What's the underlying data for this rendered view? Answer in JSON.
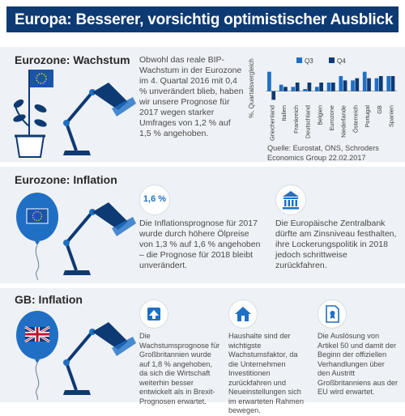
{
  "title": "Europa: Besserer, vorsichtig optimistischer Ausblick",
  "sections": {
    "growth": {
      "title": "Eurozone: Wachstum",
      "text": "Obwohl das reale BIP-Wachstum in der Eurozone im 4. Quartal 2016 mit 0,4 % unverändert blieb, haben wir unsere Prognose für 2017 wegen starker Umfrages von 1,2 % auf 1,5 % angehoben.",
      "source_line1": "Quelle: Eurostat, ONS, Schroders",
      "source_line2": "Economics Group 22.02.2017"
    },
    "inflation": {
      "title": "Eurozone: Inflation",
      "badge": "1,6 %",
      "text1": "Die Inflationsprognose für 2017 wurde durch höhere Ölpreise von 1,3 % auf 1,6 % angehoben – die Prognose für 2018 bleibt unverändert.",
      "text2": "Die Europäische Zentralbank dürfte am Zinsniveau festhalten, ihre Lockerungspolitik in 2018 jedoch schrittweise zurückfahren."
    },
    "gb": {
      "title": "GB: Inflation",
      "text1": "Die Wachstumsprognose für Großbritannien wurde auf 1,8 % angehoben, da sich die Wirtschaft weiterhin besser entwickelt als in Brexit-Prognosen erwartet.",
      "text2": "Haushalte sind der wichtigste Wachstumsfaktor, da die Unternehmen Investitionen zurückfahren und Neueinstellungen sich im erwarteten Rahmen bewegen.",
      "text3": "Die Auslösung von Artikel 50 und damit der Beginn der offiziellen Verhandlungen über den Austritt Großbritanniens aus der EU wird erwartet."
    }
  },
  "icons": [
    "euro-plant-icon",
    "desk-lamp-icon",
    "euro-balloon-icon",
    "bank-icon",
    "uk-balloon-icon",
    "arrow-up-icon",
    "house-icon",
    "document-icon"
  ],
  "colors": {
    "navy": "#0e3a73",
    "q3": "#1f6fc4",
    "q4": "#0e3a73",
    "accent_light": "#1f6fc4"
  },
  "chart_data": {
    "type": "bar",
    "ylabel": "%, Quartalsvergleich",
    "categories": [
      "Griechenland",
      "Italien",
      "Frankreich",
      "Deutschland",
      "Belgien",
      "Eurozone",
      "Niederlande",
      "Österreich",
      "Portugal",
      "GB",
      "Spanien"
    ],
    "series": [
      {
        "name": "Q3",
        "values": [
          0.9,
          0.3,
          0.2,
          0.1,
          0.2,
          0.4,
          0.7,
          0.5,
          0.9,
          0.6,
          0.7
        ]
      },
      {
        "name": "Q4",
        "values": [
          -0.4,
          0.2,
          0.4,
          0.4,
          0.4,
          0.4,
          0.5,
          0.6,
          0.6,
          0.7,
          0.7
        ]
      }
    ],
    "ylim": [
      -0.5,
      1.0
    ],
    "grid": false,
    "legend": "top"
  }
}
